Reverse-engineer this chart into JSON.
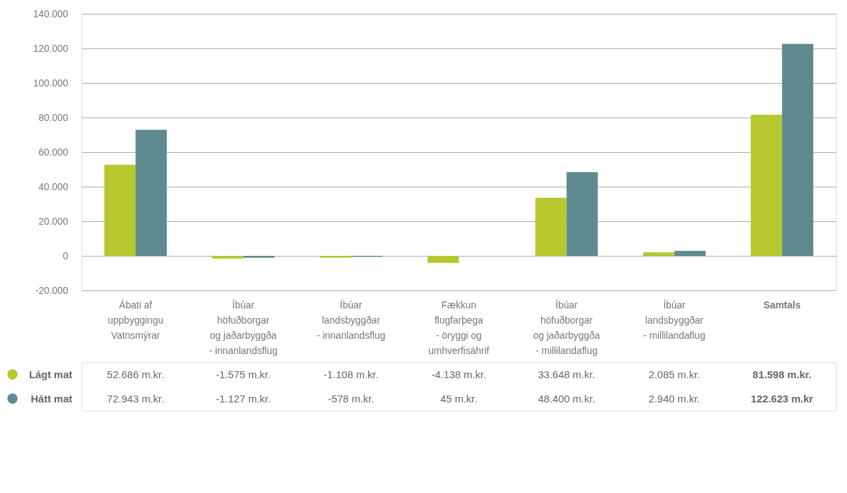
{
  "chart_data": {
    "type": "bar",
    "categories": [
      "Ábati af\nuppbyggingu\nVatnsmýrar",
      "Íbúar\nhöfuðborgar\nog jaðarbyggða\n- innanlandsflug",
      "Íbúar\nlandsbyggðar\n- innanlandsflug",
      "Fækkun\nflugfarþega\n- öryggi og\numhverfisáhrif",
      "Íbúar\nhöfuðborgar\nog jaðarbyggða\n- millilandaflug",
      "Íbúar\nlandsbyggðar\n- millilandaflug",
      "Samtals"
    ],
    "series": [
      {
        "name": "Lágt mat",
        "color": "#b7c92f",
        "values": [
          52686,
          -1575,
          -1108,
          -4138,
          33648,
          2085,
          81598
        ],
        "value_labels": [
          "52.686 m.kr.",
          "-1.575 m.kr.",
          "-1.108 m.kr.",
          "-4.138 m.kr.",
          "33.648 m.kr.",
          "2.085 m.kr.",
          "81.598 m.kr."
        ]
      },
      {
        "name": "Hátt mat",
        "color": "#5f8b90",
        "values": [
          72943,
          -1127,
          -578,
          45,
          48400,
          2940,
          122623
        ],
        "value_labels": [
          "72.943 m.kr.",
          "-1.127 m.kr.",
          "-578 m.kr.",
          "45 m.kr.",
          "48.400 m.kr.",
          "2.940 m.kr.",
          "122.623 m.kr"
        ]
      }
    ],
    "ylim": [
      -20000,
      140000
    ],
    "yticks": [
      {
        "value": -20000,
        "label": "-20.000"
      },
      0,
      {
        "value": 20000,
        "label": "20.000"
      },
      {
        "value": 40000,
        "label": "40.000"
      },
      {
        "value": 60000,
        "label": "60.000"
      },
      {
        "value": 80000,
        "label": "80.000"
      },
      {
        "value": 100000,
        "label": "100.000"
      },
      {
        "value": 120000,
        "label": "120.000"
      },
      {
        "value": 140000,
        "label": "140.000"
      }
    ],
    "grid": "y",
    "legend": "bottom"
  }
}
